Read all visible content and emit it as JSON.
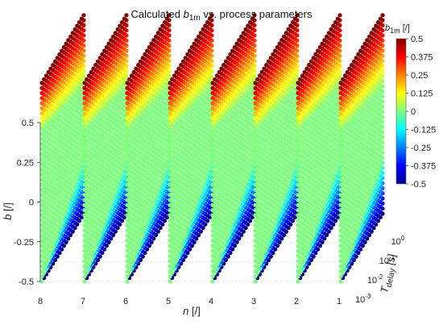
{
  "chart_data": {
    "type": "scatter",
    "title_prefix": "Calculated",
    "title_var": "b",
    "title_sub": "1m",
    "title_suffix": "vs. process parameters",
    "ylabel_var": "b",
    "ylabel_unit": "[/]",
    "xlabel_var": "n",
    "xlabel_unit": "[/]",
    "zlabel_var": "T",
    "zlabel_sub": "delay",
    "zlabel_unit": "[s]",
    "n_values": [
      8,
      7,
      6,
      5,
      4,
      3,
      2,
      1
    ],
    "b_ticks": [
      "-0.5",
      "-0.25",
      "0",
      "0.25",
      "0.5"
    ],
    "b_range": [
      -0.5,
      0.75
    ],
    "t_tick_base": "10",
    "t_tick_exponents": [
      "-3",
      "-2",
      "-1",
      "0"
    ],
    "t_range_log10": [
      -3,
      0.5
    ],
    "colorbar": {
      "title_var": "b",
      "title_sub": "1m",
      "title_unit": "[/]",
      "ticks": [
        "0.5",
        "0.375",
        "0.25",
        "0.125",
        "0",
        "-0.125",
        "-0.25",
        "-0.375",
        "-0.5"
      ],
      "range": [
        -0.5,
        0.5
      ],
      "colormap": "jet"
    },
    "grid": true,
    "series": [
      {
        "n": 8,
        "b1m_range": [
          -0.5,
          0.5
        ],
        "plateau": 0.0
      },
      {
        "n": 7,
        "b1m_range": [
          -0.5,
          0.5
        ],
        "plateau": 0.0
      },
      {
        "n": 6,
        "b1m_range": [
          -0.5,
          0.5
        ],
        "plateau": 0.0
      },
      {
        "n": 5,
        "b1m_range": [
          -0.5,
          0.5
        ],
        "plateau": 0.0
      },
      {
        "n": 4,
        "b1m_range": [
          -0.5,
          0.5
        ],
        "plateau": 0.0
      },
      {
        "n": 3,
        "b1m_range": [
          -0.5,
          0.5
        ],
        "plateau": 0.0
      },
      {
        "n": 2,
        "b1m_range": [
          -0.5,
          0.5
        ],
        "plateau": 0.0
      },
      {
        "n": 1,
        "b1m_range": [
          -0.5,
          0.5
        ],
        "plateau": 0.0
      }
    ]
  }
}
